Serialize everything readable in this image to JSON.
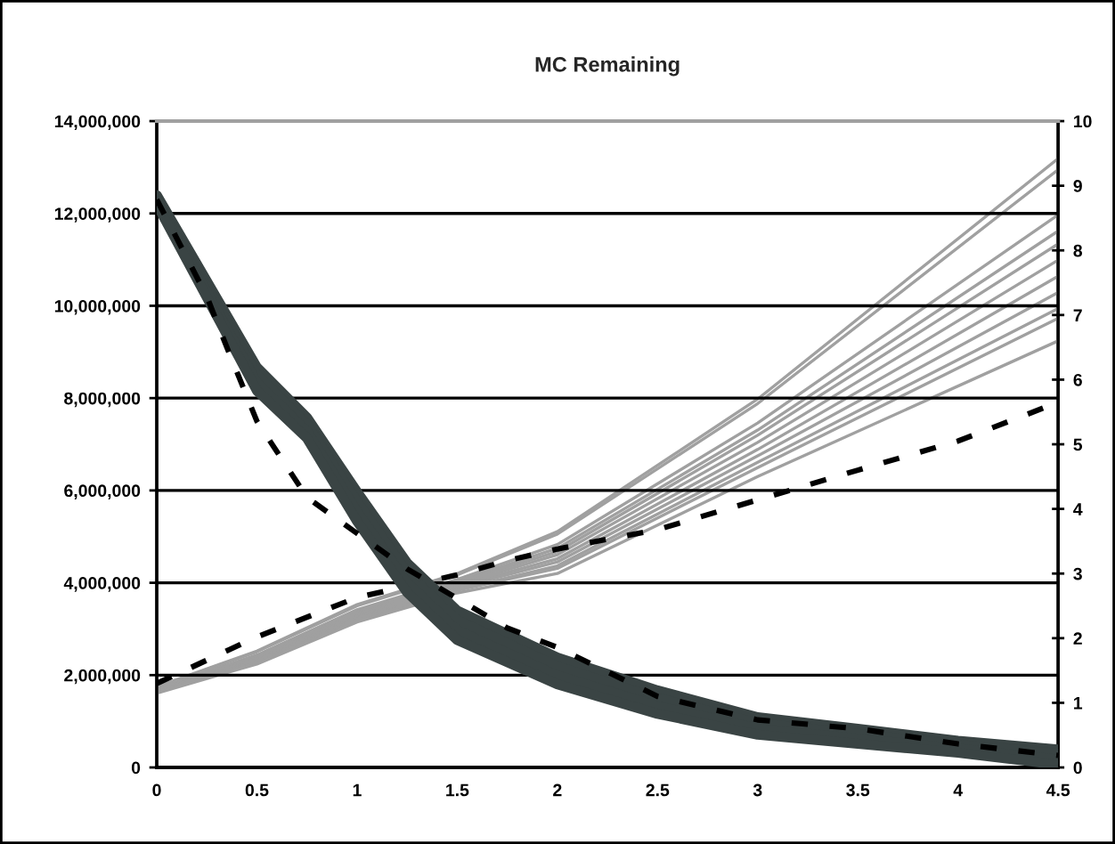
{
  "chart_data": {
    "type": "line",
    "title": "MC Remaining",
    "xlim": [
      0,
      4.5
    ],
    "xticks": [
      0,
      0.5,
      1,
      1.5,
      2,
      2.5,
      3,
      3.5,
      4,
      4.5
    ],
    "ylim": [
      0,
      14000000
    ],
    "yticks": [
      {
        "value": 0,
        "label": "0"
      },
      {
        "value": 2000000,
        "label": "2,000,000"
      },
      {
        "value": 4000000,
        "label": "4,000,000"
      },
      {
        "value": 6000000,
        "label": "6,000,000"
      },
      {
        "value": 8000000,
        "label": "8,000,000"
      },
      {
        "value": 10000000,
        "label": "10,000,000"
      },
      {
        "value": 12000000,
        "label": "12,000,000"
      },
      {
        "value": 14000000,
        "label": "14,000,000"
      }
    ],
    "y2lim": [
      0,
      10
    ],
    "y2ticks": [
      0,
      1,
      2,
      3,
      4,
      5,
      6,
      7,
      8,
      9,
      10
    ],
    "grid": "y",
    "legend": false,
    "series": [
      {
        "color": "#3a4444",
        "x": [
          0,
          0.5,
          0.75,
          1,
          1.25,
          1.5,
          2,
          2.5,
          3,
          3.5,
          4,
          4.5
        ],
        "values": [
          12400000,
          8670000,
          7580000,
          5970000,
          4430000,
          3400000,
          2380000,
          1670000,
          1090000,
          840000,
          580000,
          390000
        ]
      },
      {
        "color": "#3a4444",
        "x": [
          0,
          0.5,
          0.75,
          1,
          1.25,
          1.5,
          2,
          2.5,
          3,
          3.5,
          4,
          4.5
        ],
        "values": [
          12330000,
          8500000,
          7430000,
          5760000,
          4220000,
          3190000,
          2190000,
          1500000,
          960000,
          730000,
          490000,
          300000
        ]
      },
      {
        "color": "#3a4444",
        "x": [
          0,
          0.5,
          0.75,
          1,
          1.25,
          1.5,
          2,
          2.5,
          3,
          3.5,
          4,
          4.5
        ],
        "values": [
          12270000,
          8330000,
          7280000,
          5540000,
          4000000,
          2970000,
          1990000,
          1330000,
          840000,
          620000,
          410000,
          170000
        ]
      },
      {
        "color": "#3a4444",
        "x": [
          0,
          0.5,
          0.75,
          1,
          1.25,
          1.5,
          2,
          2.5,
          3,
          3.5,
          4,
          4.5
        ],
        "values": [
          12200000,
          8160000,
          7130000,
          5330000,
          3790000,
          2760000,
          1800000,
          1160000,
          710000,
          510000,
          320000,
          60000
        ]
      },
      {
        "color": "#000000",
        "line_style": "dashed",
        "x": [
          0,
          0.25,
          0.35,
          0.5,
          0.75,
          1,
          1.25,
          1.5,
          1.75,
          2,
          2.5,
          3,
          3.5,
          4,
          4.5
        ],
        "values": [
          12300000,
          10200000,
          9100000,
          7500000,
          5850000,
          5070000,
          4300000,
          3660000,
          3020000,
          2600000,
          1540000,
          1030000,
          840000,
          510000,
          260000
        ]
      },
      {
        "color": "#a0a0a0",
        "axis": "y2",
        "x": [
          0,
          0.5,
          1,
          1.5,
          2,
          3,
          4.5
        ],
        "values": [
          1.25,
          1.8,
          2.52,
          3.0,
          3.65,
          5.7,
          9.42
        ]
      },
      {
        "color": "#a0a0a0",
        "axis": "y2",
        "x": [
          0,
          0.5,
          1,
          1.5,
          2,
          3,
          4.5
        ],
        "values": [
          1.24,
          1.79,
          2.5,
          2.98,
          3.61,
          5.63,
          9.25
        ]
      },
      {
        "color": "#a0a0a0",
        "axis": "y2",
        "x": [
          0,
          0.5,
          1,
          1.5,
          2,
          3,
          4.5
        ],
        "values": [
          1.22,
          1.74,
          2.44,
          2.91,
          3.45,
          5.33,
          8.55
        ]
      },
      {
        "color": "#a0a0a0",
        "axis": "y2",
        "x": [
          0,
          0.5,
          1,
          1.5,
          2,
          3,
          4.5
        ],
        "values": [
          1.21,
          1.72,
          2.41,
          2.88,
          3.39,
          5.22,
          8.3
        ]
      },
      {
        "color": "#a0a0a0",
        "axis": "y2",
        "x": [
          0,
          0.5,
          1,
          1.5,
          2,
          3,
          4.5
        ],
        "values": [
          1.2,
          1.71,
          2.39,
          2.86,
          3.34,
          5.14,
          8.1
        ]
      },
      {
        "color": "#a0a0a0",
        "axis": "y2",
        "x": [
          0,
          0.5,
          1,
          1.5,
          2,
          3,
          4.5
        ],
        "values": [
          1.19,
          1.69,
          2.37,
          2.83,
          3.29,
          5.03,
          7.85
        ]
      },
      {
        "color": "#a0a0a0",
        "axis": "y2",
        "x": [
          0,
          0.5,
          1,
          1.5,
          2,
          3,
          4.5
        ],
        "values": [
          1.19,
          1.67,
          2.34,
          2.81,
          3.23,
          4.92,
          7.6
        ]
      },
      {
        "color": "#a0a0a0",
        "axis": "y2",
        "x": [
          0,
          0.5,
          1,
          1.5,
          2,
          3,
          4.5
        ],
        "values": [
          1.18,
          1.65,
          2.32,
          2.78,
          3.18,
          4.82,
          7.35
        ]
      },
      {
        "color": "#a0a0a0",
        "axis": "y2",
        "x": [
          0,
          0.5,
          1,
          1.5,
          2,
          3,
          4.5
        ],
        "values": [
          1.17,
          1.64,
          2.3,
          2.75,
          3.12,
          4.72,
          7.1
        ]
      },
      {
        "color": "#a0a0a0",
        "axis": "y2",
        "x": [
          0,
          0.5,
          1,
          1.5,
          2,
          3,
          4.5
        ],
        "values": [
          1.16,
          1.62,
          2.28,
          2.74,
          3.08,
          4.64,
          6.95
        ]
      },
      {
        "color": "#a0a0a0",
        "axis": "y2",
        "x": [
          0,
          0.5,
          1,
          1.5,
          2,
          3,
          4.5
        ],
        "values": [
          1.15,
          1.6,
          2.25,
          2.7,
          3.0,
          4.5,
          6.6
        ]
      },
      {
        "color": "#000000",
        "line_style": "dashed",
        "axis": "y2",
        "x": [
          0,
          0.5,
          1,
          1.5,
          1.75,
          2,
          2.5,
          3,
          3.5,
          4,
          4.5
        ],
        "values": [
          1.3,
          2.02,
          2.63,
          2.98,
          3.2,
          3.38,
          3.68,
          4.14,
          4.6,
          5.05,
          5.65
        ]
      }
    ]
  }
}
